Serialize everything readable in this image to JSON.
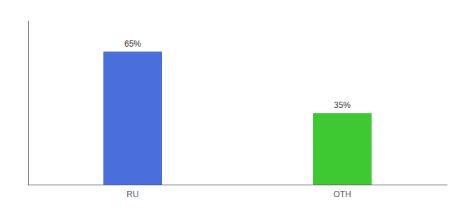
{
  "chart_data": {
    "type": "bar",
    "categories": [
      "RU",
      "OTH"
    ],
    "values": [
      65,
      35
    ],
    "value_labels": [
      "65%",
      "35%"
    ],
    "colors": [
      "#4a6edb",
      "#3ec832"
    ],
    "ylim": [
      0,
      80
    ],
    "data_labels": true,
    "tick_labels": "x",
    "grid": false
  }
}
